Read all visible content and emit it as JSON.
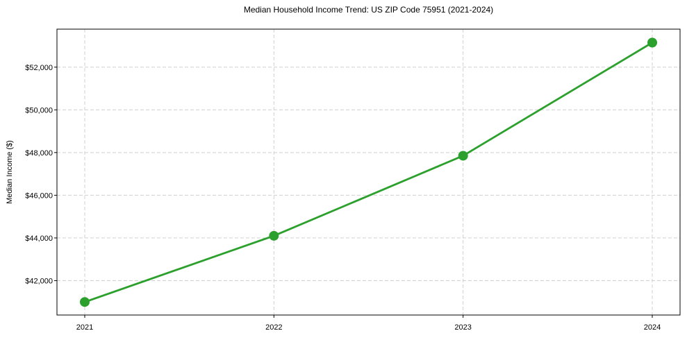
{
  "figure": {
    "background": "#ffffff"
  },
  "chart_data": {
    "type": "line",
    "title": "Median Household Income Trend: US ZIP Code 75951 (2021-2024)",
    "xlabel": "",
    "ylabel": "Median Income ($)",
    "categories": [
      "2021",
      "2022",
      "2023",
      "2024"
    ],
    "series": [
      {
        "name": "Median Household Income",
        "values": [
          41000,
          44100,
          47850,
          53150
        ]
      }
    ],
    "y_ticks": [
      42000,
      44000,
      46000,
      48000,
      50000,
      52000
    ],
    "y_tick_labels": [
      "$42,000",
      "$44,000",
      "$46,000",
      "$48,000",
      "$50,000",
      "$52,000"
    ],
    "ylim": [
      40390,
      53780
    ],
    "grid": true,
    "grid_style": "dashed",
    "legend_position": "none",
    "colors": {
      "line": "#2ca02c",
      "marker": "#2ca02c",
      "grid": "#d0d0d0",
      "spine": "#000000",
      "text": "#000000"
    }
  }
}
